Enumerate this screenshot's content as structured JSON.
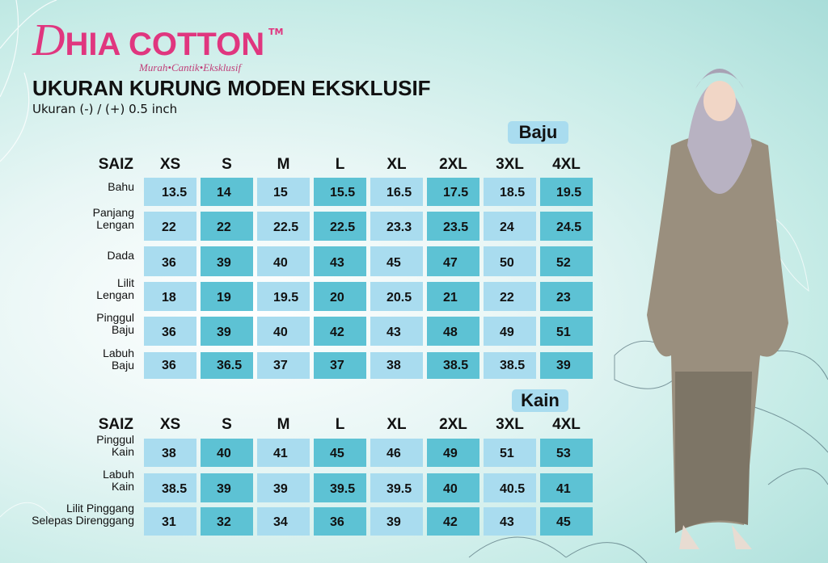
{
  "brand": {
    "logo_text": "DHIA COTTON",
    "trademark": "TM",
    "tagline": "Murah•Cantik•Eksklusif"
  },
  "title": "UKURAN KURUNG MODEN EKSKLUSIF",
  "subtitle": "Ukuran (-) / (+) 0.5 inch",
  "colors": {
    "brand": "#e0367f",
    "cell_light": "#a9dcef",
    "cell_dark": "#5dc2d4"
  },
  "sizes": [
    "XS",
    "S",
    "M",
    "L",
    "XL",
    "2XL",
    "3XL",
    "4XL"
  ],
  "saiz_label": "SAIZ",
  "baju": {
    "label": "Baju",
    "rows": [
      {
        "label": [
          "Bahu"
        ],
        "values": [
          "13.5",
          "14",
          "15",
          "15.5",
          "16.5",
          "17.5",
          "18.5",
          "19.5"
        ]
      },
      {
        "label": [
          "Panjang",
          "Lengan"
        ],
        "values": [
          "22",
          "22",
          "22.5",
          "22.5",
          "23.3",
          "23.5",
          "24",
          "24.5"
        ]
      },
      {
        "label": [
          "Dada"
        ],
        "values": [
          "36",
          "39",
          "40",
          "43",
          "45",
          "47",
          "50",
          "52"
        ]
      },
      {
        "label": [
          "Lilit",
          "Lengan"
        ],
        "values": [
          "18",
          "19",
          "19.5",
          "20",
          "20.5",
          "21",
          "22",
          "23"
        ]
      },
      {
        "label": [
          "Pinggul",
          "Baju"
        ],
        "values": [
          "36",
          "39",
          "40",
          "42",
          "43",
          "48",
          "49",
          "51"
        ]
      },
      {
        "label": [
          "Labuh",
          "Baju"
        ],
        "values": [
          "36",
          "36.5",
          "37",
          "37",
          "38",
          "38.5",
          "38.5",
          "39"
        ]
      }
    ]
  },
  "kain": {
    "label": "Kain",
    "rows": [
      {
        "label": [
          "Pinggul",
          "Kain"
        ],
        "values": [
          "38",
          "40",
          "41",
          "45",
          "46",
          "49",
          "51",
          "53"
        ]
      },
      {
        "label": [
          "Labuh",
          "Kain"
        ],
        "values": [
          "38.5",
          "39",
          "39",
          "39.5",
          "39.5",
          "40",
          "40.5",
          "41"
        ]
      },
      {
        "label": [
          "Lilit Pinggang",
          "Selepas Direnggang"
        ],
        "values": [
          "31",
          "32",
          "34",
          "36",
          "39",
          "42",
          "43",
          "45"
        ]
      }
    ]
  }
}
